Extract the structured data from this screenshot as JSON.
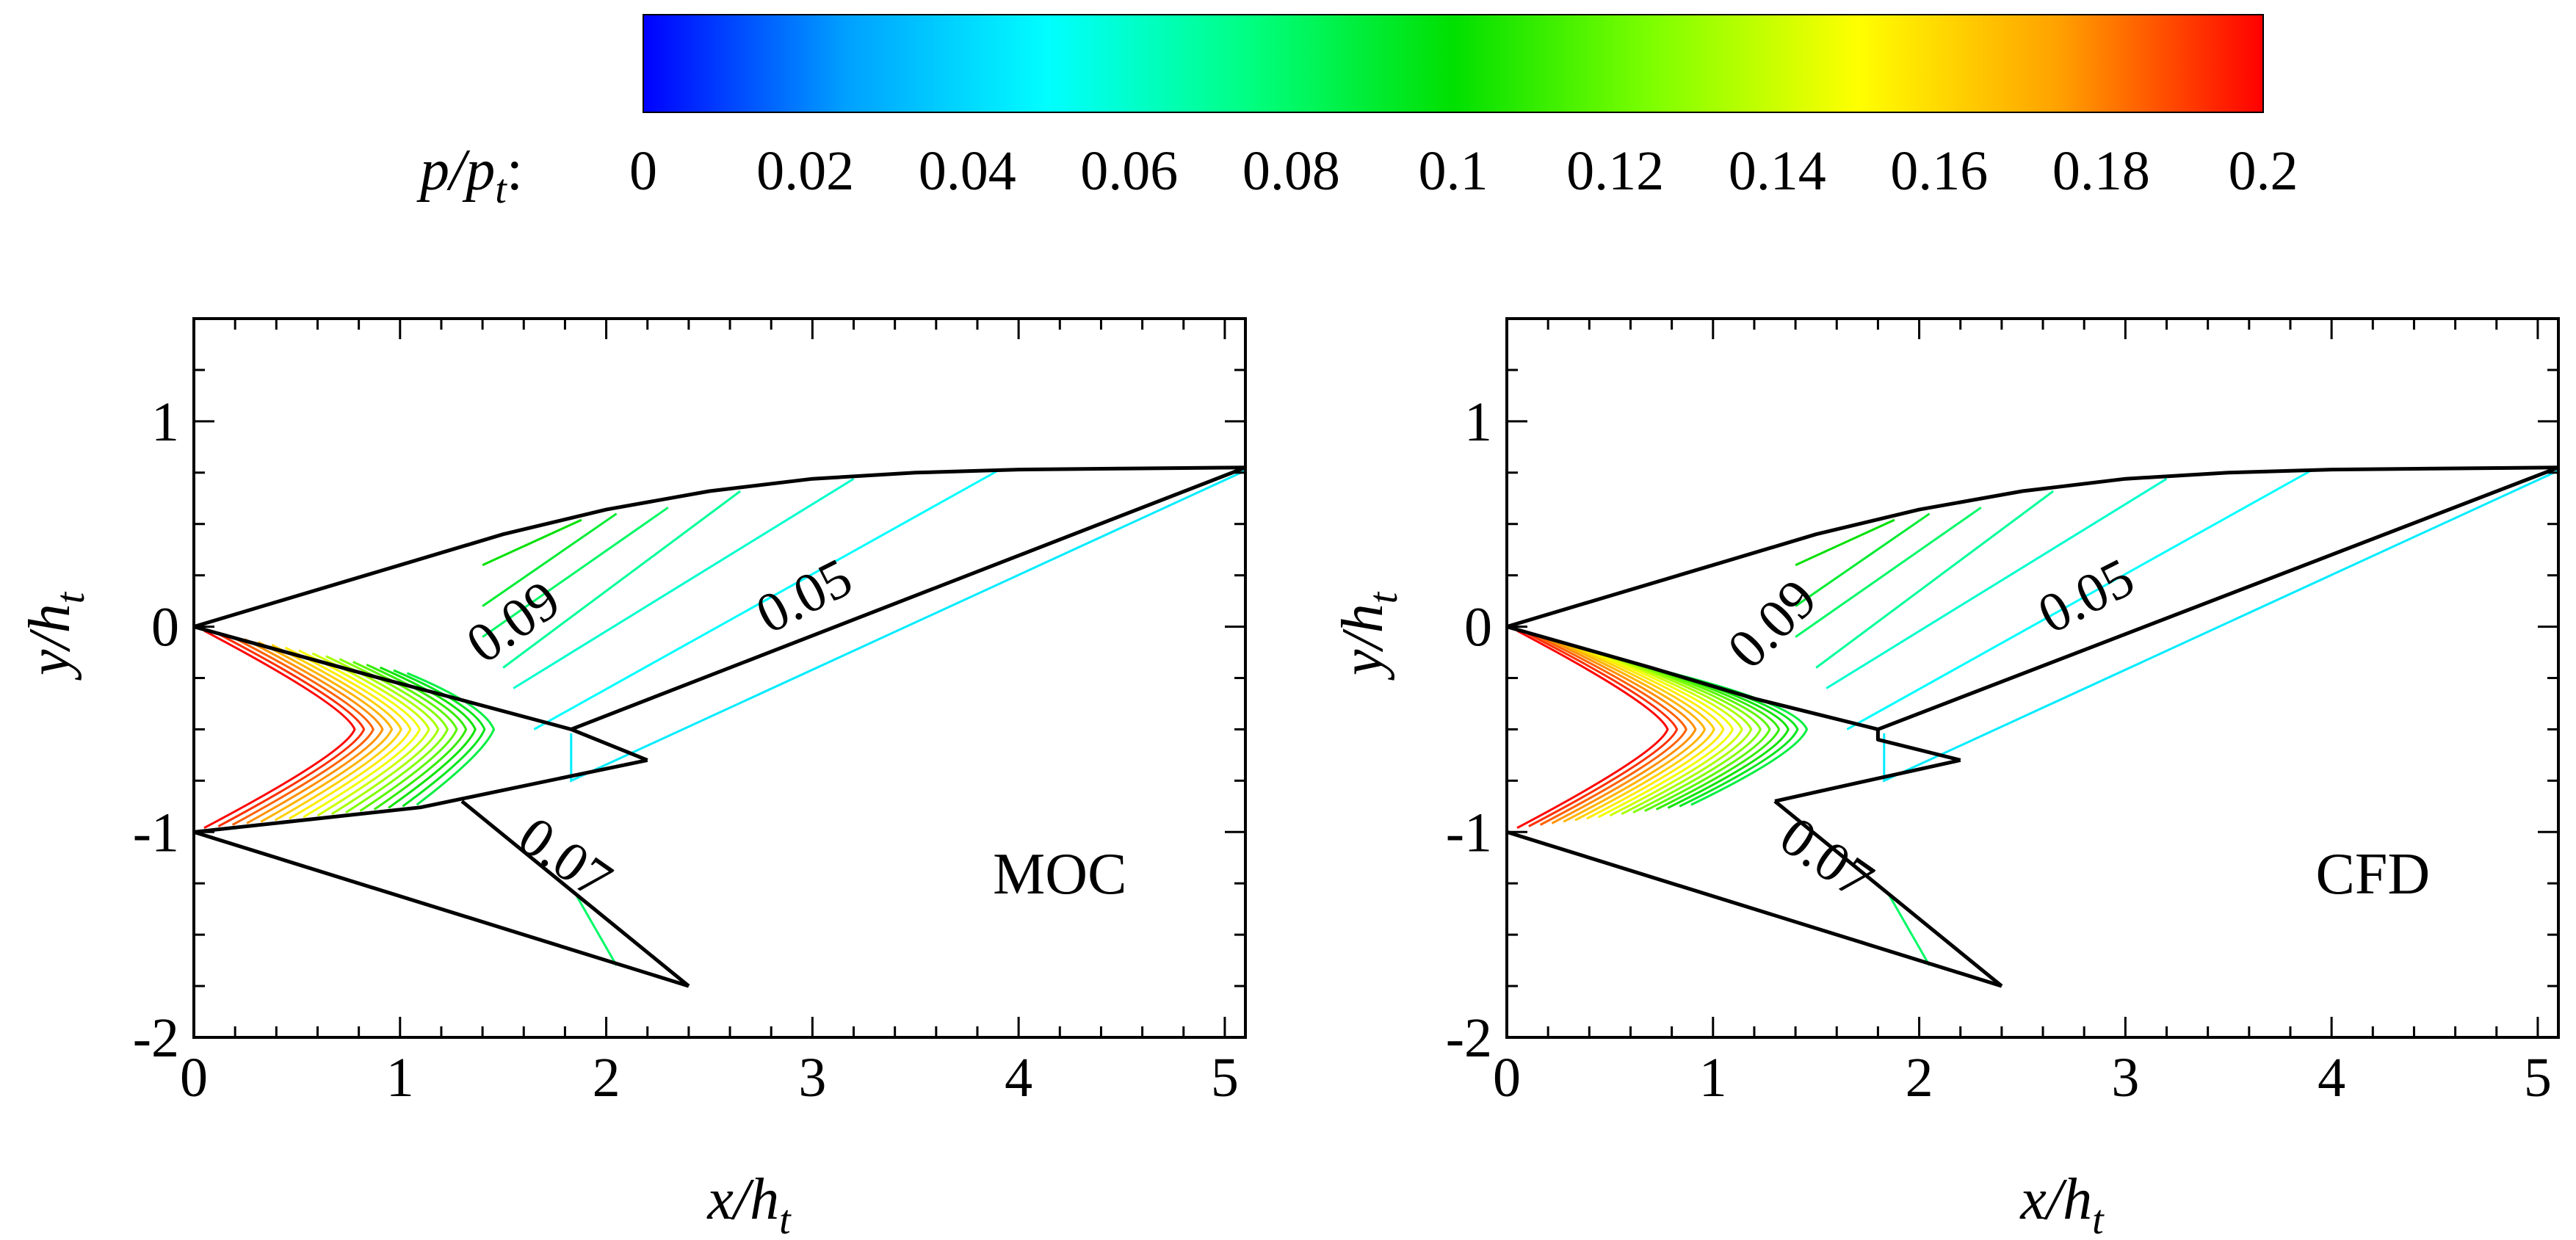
{
  "colorbar": {
    "title_main": "p/p",
    "title_sub": "t",
    "title_suffix": ":",
    "tick_labels": [
      "0",
      "0.02",
      "0.04",
      "0.06",
      "0.08",
      "0.1",
      "0.12",
      "0.14",
      "0.16",
      "0.18",
      "0.2"
    ],
    "colors": [
      "#0000ff",
      "#00a0ff",
      "#00ffff",
      "#00ff80",
      "#00e000",
      "#80ff00",
      "#ffff00",
      "#ffa000",
      "#ff0000"
    ]
  },
  "chart_data": [
    {
      "type": "contour",
      "panel": "left",
      "label": "MOC",
      "xlabel_main": "x/h",
      "xlabel_sub": "t",
      "ylabel_main": "y/h",
      "ylabel_sub": "t",
      "xlim": [
        0,
        5.1
      ],
      "ylim": [
        -2,
        1.5
      ],
      "x_ticks": [
        "0",
        "1",
        "2",
        "3",
        "4",
        "5"
      ],
      "y_ticks": [
        "1",
        "0",
        "-1",
        "-2"
      ],
      "contour_labels": [
        {
          "text": "0.09",
          "x": 1.6,
          "y": -0.05,
          "angle": -35
        },
        {
          "text": "0.05",
          "x": 3.0,
          "y": 0.07,
          "angle": -27
        },
        {
          "text": "0.07",
          "x": 1.75,
          "y": -1.2,
          "angle": 35
        }
      ]
    },
    {
      "type": "contour",
      "panel": "right",
      "label": "CFD",
      "xlabel_main": "x/h",
      "xlabel_sub": "t",
      "ylabel_main": "y/h",
      "ylabel_sub": "t",
      "xlim": [
        0,
        5.1
      ],
      "ylim": [
        -2,
        1.5
      ],
      "x_ticks": [
        "0",
        "1",
        "2",
        "3",
        "4",
        "5"
      ],
      "y_ticks": [
        "1",
        "0",
        "-1",
        "-2"
      ],
      "contour_labels": [
        {
          "text": "0.09",
          "x": 1.35,
          "y": -0.05,
          "angle": -45
        },
        {
          "text": "0.05",
          "x": 2.85,
          "y": 0.07,
          "angle": -27
        },
        {
          "text": "0.07",
          "x": 1.5,
          "y": -1.2,
          "angle": 35
        }
      ]
    }
  ]
}
